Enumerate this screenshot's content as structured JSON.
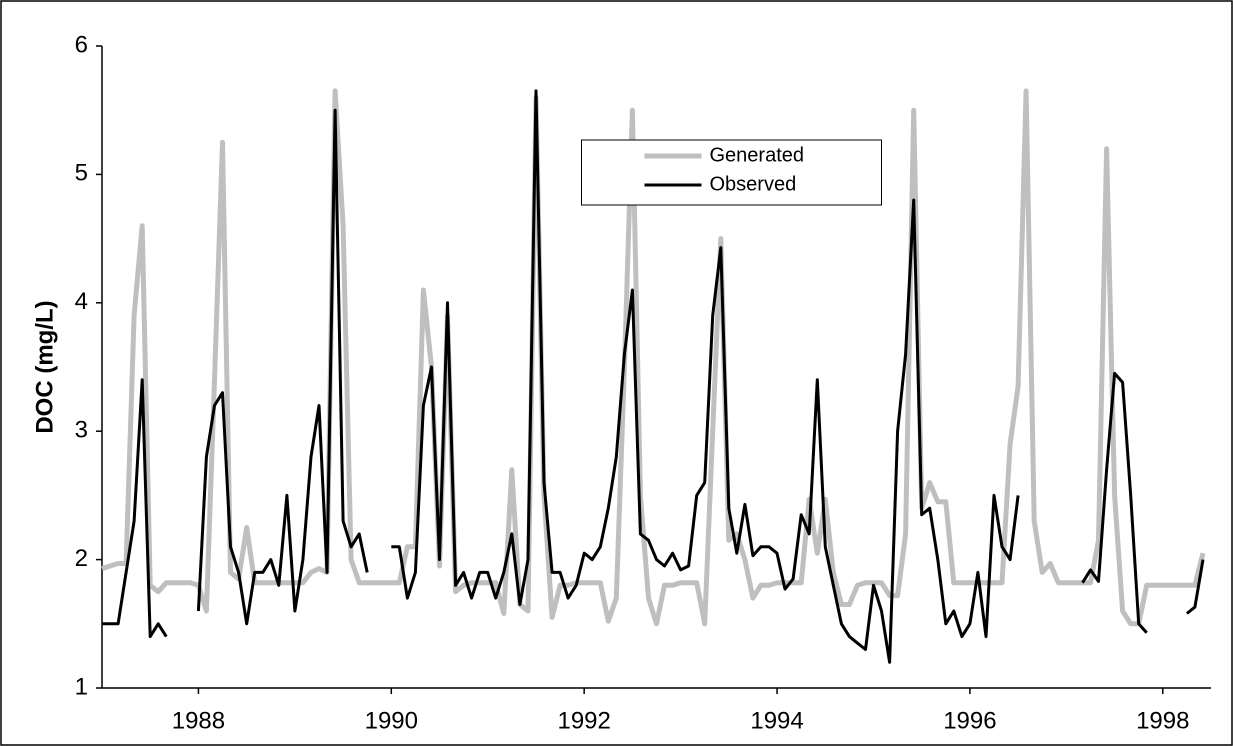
{
  "chart_data": {
    "type": "line",
    "y_label": "DOC (mg/L)",
    "x": [
      1987,
      1987.083,
      1987.167,
      1987.25,
      1987.333,
      1987.417,
      1987.5,
      1987.583,
      1987.667,
      1987.75,
      1987.833,
      1987.917,
      1988,
      1988.083,
      1988.167,
      1988.25,
      1988.333,
      1988.417,
      1988.5,
      1988.583,
      1988.667,
      1988.75,
      1988.833,
      1988.917,
      1989,
      1989.083,
      1989.167,
      1989.25,
      1989.333,
      1989.417,
      1989.5,
      1989.583,
      1989.667,
      1989.75,
      1989.833,
      1989.917,
      1990,
      1990.083,
      1990.167,
      1990.25,
      1990.333,
      1990.417,
      1990.5,
      1990.583,
      1990.667,
      1990.75,
      1990.833,
      1990.917,
      1991,
      1991.083,
      1991.167,
      1991.25,
      1991.333,
      1991.417,
      1991.5,
      1991.583,
      1991.667,
      1991.75,
      1991.833,
      1991.917,
      1992,
      1992.083,
      1992.167,
      1992.25,
      1992.333,
      1992.417,
      1992.5,
      1992.583,
      1992.667,
      1992.75,
      1992.833,
      1992.917,
      1993,
      1993.083,
      1993.167,
      1993.25,
      1993.333,
      1993.417,
      1993.5,
      1993.583,
      1993.667,
      1993.75,
      1993.833,
      1993.917,
      1994,
      1994.083,
      1994.167,
      1994.25,
      1994.333,
      1994.417,
      1994.5,
      1994.583,
      1994.667,
      1994.75,
      1994.833,
      1994.917,
      1995,
      1995.083,
      1995.167,
      1995.25,
      1995.333,
      1995.417,
      1995.5,
      1995.583,
      1995.667,
      1995.75,
      1995.833,
      1995.917,
      1996,
      1996.083,
      1996.167,
      1996.25,
      1996.333,
      1996.417,
      1996.5,
      1996.583,
      1996.667,
      1996.75,
      1996.833,
      1996.917,
      1997,
      1997.083,
      1997.167,
      1997.25,
      1997.333,
      1997.417,
      1997.5,
      1997.583,
      1997.667,
      1997.75,
      1997.833,
      1997.917,
      1998,
      1998.083,
      1998.167,
      1998.25,
      1998.333,
      1998.417
    ],
    "series": [
      {
        "name": "Generated",
        "color": "#bfbfbf",
        "width": 5,
        "values": [
          1.93,
          1.95,
          1.97,
          1.97,
          3.9,
          4.6,
          1.8,
          1.75,
          1.82,
          1.82,
          1.82,
          1.82,
          1.8,
          1.6,
          3.4,
          5.25,
          1.9,
          1.85,
          2.25,
          1.82,
          1.82,
          1.82,
          1.82,
          1.82,
          1.82,
          1.82,
          1.9,
          1.93,
          1.9,
          5.65,
          4.6,
          2.0,
          1.82,
          1.82,
          1.82,
          1.82,
          1.82,
          1.82,
          2.1,
          2.1,
          4.1,
          3.5,
          1.95,
          3.9,
          1.75,
          1.8,
          1.82,
          1.82,
          1.82,
          1.82,
          1.58,
          2.7,
          1.65,
          1.6,
          5.6,
          2.5,
          1.55,
          1.8,
          1.8,
          1.82,
          1.82,
          1.82,
          1.82,
          1.52,
          1.7,
          3.5,
          5.5,
          2.5,
          1.7,
          1.5,
          1.8,
          1.8,
          1.82,
          1.82,
          1.82,
          1.5,
          3.0,
          4.5,
          2.15,
          2.2,
          2.0,
          1.7,
          1.8,
          1.8,
          1.82,
          1.82,
          1.82,
          1.82,
          2.47,
          2.05,
          2.47,
          1.9,
          1.65,
          1.65,
          1.8,
          1.82,
          1.82,
          1.82,
          1.72,
          1.72,
          2.2,
          5.5,
          2.4,
          2.6,
          2.45,
          2.45,
          1.82,
          1.82,
          1.82,
          1.82,
          1.82,
          1.82,
          1.82,
          2.9,
          3.35,
          5.65,
          2.3,
          1.9,
          1.97,
          1.82,
          1.82,
          1.82,
          1.82,
          1.82,
          2.15,
          5.2,
          2.5,
          1.6,
          1.5,
          1.5,
          1.8,
          1.8,
          1.8,
          1.8,
          1.8,
          1.8,
          1.8,
          2.05
        ]
      },
      {
        "name": "Observed",
        "color": "#000000",
        "width": 3,
        "values": [
          1.5,
          1.5,
          1.5,
          1.9,
          2.3,
          3.4,
          1.4,
          1.5,
          1.4,
          null,
          null,
          null,
          1.6,
          2.8,
          3.2,
          3.3,
          2.1,
          1.9,
          1.5,
          1.9,
          1.9,
          2.0,
          1.8,
          2.5,
          1.6,
          2.0,
          2.8,
          3.2,
          1.9,
          5.5,
          2.3,
          2.1,
          2.2,
          1.9,
          null,
          null,
          2.1,
          2.1,
          1.7,
          1.9,
          3.2,
          3.5,
          2.0,
          4.0,
          1.8,
          1.9,
          1.7,
          1.9,
          1.9,
          1.7,
          1.9,
          2.2,
          1.65,
          2.0,
          5.65,
          2.6,
          1.9,
          1.9,
          1.7,
          1.8,
          2.05,
          2.0,
          2.1,
          2.4,
          2.8,
          3.6,
          4.1,
          2.2,
          2.15,
          2.0,
          1.95,
          2.05,
          1.92,
          1.95,
          2.5,
          2.6,
          3.9,
          4.43,
          2.4,
          2.05,
          2.43,
          2.03,
          2.1,
          2.1,
          2.05,
          1.77,
          1.85,
          2.35,
          2.2,
          3.4,
          2.1,
          1.8,
          1.5,
          1.4,
          1.35,
          1.3,
          1.8,
          1.6,
          1.2,
          3.0,
          3.6,
          4.8,
          2.35,
          2.4,
          2.0,
          1.5,
          1.6,
          1.4,
          1.5,
          1.9,
          1.4,
          2.5,
          2.1,
          2.0,
          2.5,
          null,
          null,
          null,
          null,
          null,
          null,
          null,
          1.82,
          1.92,
          1.83,
          2.7,
          3.45,
          3.38,
          2.5,
          1.5,
          1.43,
          null,
          null,
          null,
          null,
          1.58,
          1.63,
          2.0
        ]
      }
    ],
    "xlim": [
      1987,
      1998.5
    ],
    "xticks": [
      1988,
      1990,
      1992,
      1994,
      1996,
      1998
    ],
    "ylim": [
      1,
      6
    ],
    "yticks": [
      1,
      2,
      3,
      4,
      5,
      6
    ],
    "grid": false,
    "legend": "upper center"
  }
}
